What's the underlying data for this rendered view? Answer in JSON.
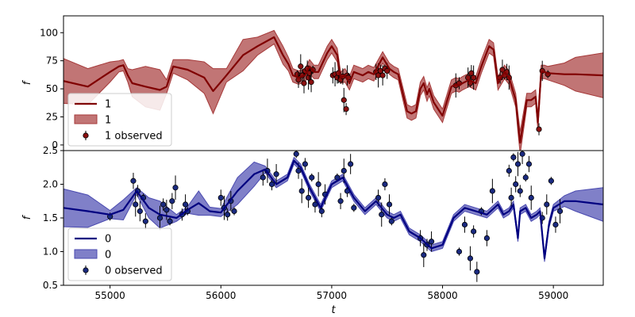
{
  "chart_data": [
    {
      "type": "line",
      "panel": "top",
      "xlabel": "",
      "ylabel": "f",
      "xlim": [
        54580,
        59450
      ],
      "ylim": [
        -5,
        115
      ],
      "yticks": [
        0,
        25,
        50,
        75,
        100
      ],
      "xticks": [],
      "legend_position": "bottom-left",
      "colors": {
        "line": "#800000",
        "band": "#a63a3a",
        "point": "#8b1010"
      },
      "legend": [
        {
          "label": "1",
          "kind": "line"
        },
        {
          "label": "1",
          "kind": "band"
        },
        {
          "label": "1 observed",
          "kind": "point"
        }
      ],
      "series": [
        {
          "name": "1",
          "x": [
            54580,
            54800,
            55000,
            55080,
            55120,
            55160,
            55200,
            55320,
            55450,
            55510,
            55570,
            55700,
            55850,
            55930,
            56050,
            56200,
            56330,
            56480,
            56560,
            56610,
            56650,
            56700,
            56760,
            56800,
            56840,
            56880,
            56960,
            57000,
            57050,
            57080,
            57120,
            57160,
            57200,
            57280,
            57330,
            57380,
            57460,
            57520,
            57560,
            57600,
            57680,
            57720,
            57760,
            57800,
            57830,
            57860,
            57880,
            57920,
            58000,
            58080,
            58120,
            58150,
            58180,
            58240,
            58300,
            58350,
            58420,
            58460,
            58500,
            58560,
            58600,
            58630,
            58660,
            58680,
            58700,
            58760,
            58800,
            58840,
            58860,
            58890,
            58920,
            58950,
            59100,
            59200,
            59450
          ],
          "y": [
            57,
            52,
            65,
            70,
            71,
            62,
            55,
            52,
            49,
            52,
            70,
            67,
            60,
            48,
            62,
            80,
            88,
            96,
            80,
            72,
            62,
            60,
            62,
            70,
            65,
            65,
            82,
            88,
            80,
            60,
            62,
            55,
            65,
            62,
            65,
            63,
            78,
            68,
            65,
            63,
            30,
            28,
            30,
            50,
            55,
            45,
            50,
            38,
            26,
            52,
            54,
            53,
            55,
            58,
            55,
            70,
            88,
            85,
            55,
            65,
            60,
            50,
            40,
            20,
            2,
            40,
            40,
            43,
            20,
            65,
            65,
            64,
            63,
            63,
            62
          ],
          "band": [
            20,
            16,
            9,
            5,
            5,
            6,
            12,
            18,
            18,
            6,
            6,
            9,
            14,
            20,
            6,
            14,
            8,
            6,
            8,
            6,
            6,
            6,
            6,
            6,
            6,
            6,
            6,
            6,
            6,
            5,
            6,
            6,
            6,
            6,
            6,
            6,
            5,
            5,
            5,
            5,
            6,
            6,
            6,
            6,
            6,
            6,
            6,
            6,
            6,
            6,
            6,
            6,
            6,
            6,
            6,
            6,
            6,
            6,
            6,
            6,
            6,
            6,
            6,
            8,
            10,
            6,
            6,
            6,
            6,
            6,
            6,
            6,
            10,
            15,
            20
          ]
        },
        {
          "name": "1 observed",
          "x": [
            56690,
            56700,
            56720,
            56735,
            56750,
            56760,
            56780,
            56790,
            56800,
            56815,
            56830,
            57010,
            57030,
            57050,
            57060,
            57080,
            57100,
            57110,
            57130,
            57140,
            57150,
            57400,
            57420,
            57440,
            57460,
            57480,
            57500,
            58120,
            58150,
            58230,
            58250,
            58260,
            58280,
            58520,
            58540,
            58560,
            58580,
            58600,
            58870,
            58900,
            58950
          ],
          "y": [
            63,
            58,
            70,
            62,
            55,
            66,
            68,
            60,
            64,
            56,
            67,
            62,
            63,
            60,
            64,
            58,
            61,
            40,
            32,
            62,
            60,
            65,
            62,
            66,
            62,
            68,
            66,
            53,
            55,
            60,
            55,
            64,
            60,
            60,
            67,
            62,
            65,
            60,
            14,
            66,
            63
          ]
        }
      ]
    },
    {
      "type": "line",
      "panel": "bottom",
      "xlabel": "t",
      "ylabel": "f",
      "xlim": [
        54580,
        59450
      ],
      "ylim": [
        0.5,
        2.5
      ],
      "yticks": [
        0.5,
        1.0,
        1.5,
        2.0,
        2.5
      ],
      "xticks": [
        55000,
        56000,
        57000,
        58000,
        59000
      ],
      "legend_position": "bottom-left",
      "colors": {
        "line": "#000080",
        "band": "#4a4ab0",
        "point": "#1a2a80"
      },
      "legend": [
        {
          "label": "0",
          "kind": "line"
        },
        {
          "label": "0",
          "kind": "band"
        },
        {
          "label": "0 observed",
          "kind": "point"
        }
      ],
      "series": [
        {
          "name": "0",
          "x": [
            54580,
            54800,
            55000,
            55120,
            55240,
            55350,
            55450,
            55600,
            55700,
            55800,
            55900,
            56000,
            56150,
            56300,
            56400,
            56500,
            56600,
            56660,
            56720,
            56800,
            56900,
            57000,
            57100,
            57200,
            57300,
            57400,
            57500,
            57560,
            57620,
            57700,
            57800,
            57900,
            58000,
            58100,
            58200,
            58300,
            58400,
            58500,
            58550,
            58600,
            58640,
            58680,
            58700,
            58750,
            58800,
            58850,
            58880,
            58920,
            58960,
            59000,
            59100,
            59200,
            59450
          ],
          "y": [
            1.65,
            1.6,
            1.55,
            1.62,
            1.9,
            1.65,
            1.55,
            1.5,
            1.62,
            1.72,
            1.6,
            1.58,
            1.9,
            2.15,
            2.22,
            2.0,
            2.1,
            2.35,
            2.25,
            1.95,
            1.65,
            2.0,
            2.1,
            1.8,
            1.6,
            1.75,
            1.55,
            1.5,
            1.55,
            1.3,
            1.2,
            1.05,
            1.1,
            1.5,
            1.65,
            1.6,
            1.55,
            1.7,
            1.55,
            1.6,
            1.7,
            1.2,
            1.6,
            1.65,
            1.5,
            1.55,
            1.6,
            0.9,
            1.4,
            1.65,
            1.75,
            1.75,
            1.7
          ],
          "band": [
            0.28,
            0.24,
            0.06,
            0.15,
            0.05,
            0.15,
            0.2,
            0.05,
            0.05,
            0.18,
            0.06,
            0.06,
            0.2,
            0.18,
            0.05,
            0.05,
            0.05,
            0.05,
            0.05,
            0.05,
            0.05,
            0.05,
            0.05,
            0.05,
            0.05,
            0.05,
            0.05,
            0.05,
            0.05,
            0.05,
            0.05,
            0.05,
            0.05,
            0.05,
            0.05,
            0.05,
            0.05,
            0.05,
            0.05,
            0.05,
            0.05,
            0.05,
            0.05,
            0.05,
            0.05,
            0.05,
            0.05,
            0.05,
            0.05,
            0.05,
            0.08,
            0.15,
            0.25
          ]
        },
        {
          "name": "0 observed",
          "x": [
            55000,
            55210,
            55230,
            55250,
            55270,
            55300,
            55320,
            55450,
            55480,
            55510,
            55540,
            55560,
            55590,
            55650,
            55680,
            55700,
            56000,
            56030,
            56060,
            56090,
            56120,
            56380,
            56420,
            56460,
            56500,
            56680,
            56700,
            56730,
            56760,
            56790,
            56820,
            56850,
            56880,
            56910,
            56940,
            57050,
            57080,
            57110,
            57140,
            57170,
            57200,
            57420,
            57450,
            57480,
            57520,
            57540,
            57800,
            57830,
            57860,
            57900,
            58150,
            58200,
            58250,
            58280,
            58310,
            58350,
            58400,
            58450,
            58600,
            58620,
            58640,
            58660,
            58680,
            58700,
            58720,
            58750,
            58780,
            58800,
            58900,
            58940,
            58980,
            59020,
            59060
          ],
          "y": [
            1.52,
            2.05,
            1.7,
            1.9,
            1.6,
            1.8,
            1.45,
            1.5,
            1.7,
            1.62,
            1.45,
            1.75,
            1.95,
            1.55,
            1.7,
            1.6,
            1.8,
            1.65,
            1.55,
            1.75,
            1.6,
            2.1,
            2.2,
            2.0,
            2.15,
            2.45,
            2.2,
            1.9,
            2.3,
            1.8,
            2.1,
            1.7,
            2.0,
            1.6,
            1.85,
            2.1,
            1.75,
            2.2,
            1.9,
            2.3,
            1.65,
            1.8,
            1.55,
            2.0,
            1.7,
            1.45,
            1.2,
            0.95,
            1.1,
            1.15,
            1.0,
            1.4,
            0.9,
            1.3,
            0.7,
            1.6,
            1.2,
            1.9,
            2.2,
            1.8,
            2.4,
            2.0,
            2.3,
            1.9,
            2.45,
            2.1,
            2.3,
            1.8,
            1.5,
            1.7,
            2.05,
            1.4,
            1.6
          ]
        }
      ]
    }
  ]
}
